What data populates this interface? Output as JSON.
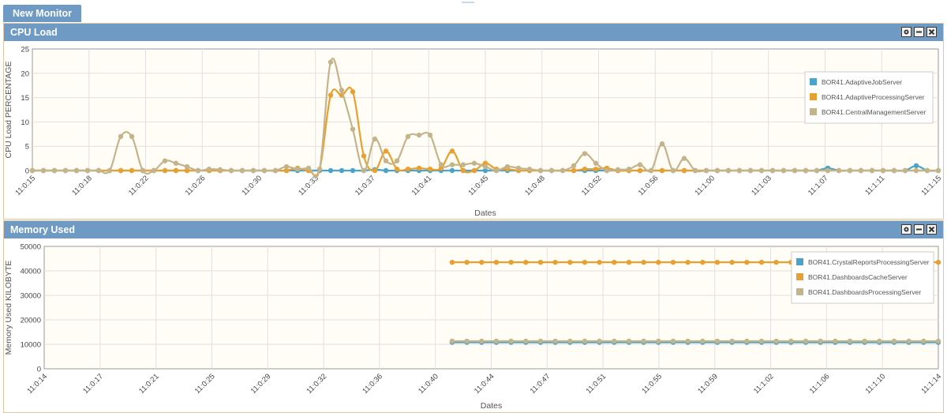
{
  "tab": {
    "label": "New Monitor"
  },
  "panels": [
    {
      "title": "CPU Load",
      "buttons": [
        "gear-icon",
        "minimize-icon",
        "close-icon"
      ]
    },
    {
      "title": "Memory Used",
      "buttons": [
        "gear-icon",
        "minimize-icon",
        "close-icon"
      ]
    }
  ],
  "colors": {
    "header": "#6e9ac4",
    "plot_bg": "#fffdf6",
    "grid": "#e0e0e0",
    "series_blue": "#4aa3c8",
    "series_orange": "#e8a030",
    "series_tan": "#c4b48c"
  },
  "chart_data": [
    {
      "type": "line",
      "title": "",
      "xlabel": "Dates",
      "ylabel": "CPU Load PERCENTAGE",
      "ylim": [
        0,
        25
      ],
      "yticks": [
        0,
        5,
        10,
        15,
        20,
        25
      ],
      "x_tick_labels": [
        "11:0:15",
        "11:0:18",
        "11:0:22",
        "11:0:26",
        "11:0:30",
        "11:0:33",
        "11:0:37",
        "11:0:41",
        "11:0:45",
        "11:0:48",
        "11:0:52",
        "11:0:56",
        "11:1:00",
        "11:1:03",
        "11:1:07",
        "11:1:11",
        "11:1:15"
      ],
      "grid": true,
      "legend": "top-right",
      "series": [
        {
          "name": "BOR41.AdaptiveJobServer",
          "color": "#4aa3c8",
          "values": [
            0,
            0,
            0,
            0,
            0,
            0,
            0,
            0,
            0,
            0,
            0,
            0,
            0,
            0,
            0,
            0,
            0,
            0,
            0,
            0,
            0,
            0,
            0,
            0,
            0,
            0,
            0,
            0,
            0,
            0,
            0,
            0.2,
            0,
            0,
            0,
            0,
            0,
            0,
            0,
            0,
            0,
            0,
            0,
            0,
            0,
            0,
            0,
            0,
            0,
            0,
            0,
            0,
            0,
            0,
            0,
            0,
            0,
            0,
            0,
            0,
            0,
            0,
            0,
            0,
            0,
            0,
            0,
            0,
            0,
            0,
            0,
            0,
            0.5,
            0,
            0,
            0,
            0,
            0,
            0,
            0,
            1,
            0,
            0
          ]
        },
        {
          "name": "BOR41.AdaptiveProcessingServer",
          "color": "#e8a030",
          "values": [
            0,
            0,
            0,
            0,
            0,
            0,
            0,
            0,
            0,
            0,
            0,
            0,
            0,
            0,
            0,
            0,
            0,
            0,
            0,
            0,
            0,
            0,
            0,
            0,
            0.5,
            0,
            0.3,
            15.5,
            15.5,
            16.2,
            3,
            0,
            4,
            0.3,
            0.3,
            0.5,
            0.3,
            0.5,
            4,
            0,
            0,
            1.5,
            0.3,
            0.3,
            0,
            0,
            0,
            0,
            0,
            0,
            0.3,
            0.3,
            0.5,
            0,
            0,
            0,
            0,
            0,
            0,
            0,
            0,
            0,
            0,
            0,
            0,
            0,
            0,
            0,
            0,
            0,
            0,
            0,
            0,
            0,
            0,
            0,
            0,
            0,
            0,
            0,
            0,
            0,
            0
          ]
        },
        {
          "name": "BOR41.CentralManagementServer",
          "color": "#c4b48c",
          "values": [
            0,
            0,
            0,
            0,
            0,
            0,
            0,
            0,
            7,
            7,
            0,
            0,
            2,
            1.5,
            0.8,
            0,
            0.3,
            0.2,
            0,
            0,
            0,
            0,
            0,
            0.8,
            0.3,
            0.5,
            0.3,
            22.3,
            16.5,
            8.5,
            0,
            6.5,
            2,
            2,
            7,
            7.3,
            7.3,
            1.2,
            1.2,
            1.2,
            1.5,
            0.8,
            0,
            0.8,
            0.5,
            0.3,
            0,
            0,
            0,
            1,
            3.5,
            1.5,
            0,
            0.2,
            0.3,
            1.2,
            0,
            5.5,
            0,
            2.5,
            0,
            0,
            0,
            0,
            0,
            0,
            0,
            0,
            0,
            0,
            0,
            0,
            0,
            0,
            0,
            0,
            0,
            0,
            0,
            0,
            0,
            0,
            0
          ]
        }
      ]
    },
    {
      "type": "line",
      "title": "",
      "xlabel": "Dates",
      "ylabel": "Memory Used KILOBYTE",
      "ylim": [
        0,
        50000
      ],
      "yticks": [
        0,
        10000,
        20000,
        30000,
        40000,
        50000
      ],
      "x_tick_labels": [
        "11:0:14",
        "11:0:17",
        "11:0:21",
        "11:0:25",
        "11:0:29",
        "11:0:32",
        "11:0:36",
        "11:0:40",
        "11:0:44",
        "11:0:47",
        "11:0:51",
        "11:0:55",
        "11:0:59",
        "11:1:02",
        "11:1:06",
        "11:1:10",
        "11:1:14"
      ],
      "grid": true,
      "legend": "top-right",
      "series_start_tick": 7.3,
      "series": [
        {
          "name": "BOR41.CrystalReportsProcessingServer",
          "color": "#4aa3c8",
          "constant": 10800
        },
        {
          "name": "BOR41.DashboardsCacheServer",
          "color": "#e8a030",
          "constant": 43500
        },
        {
          "name": "BOR41.DashboardsProcessingServer",
          "color": "#c4b48c",
          "constant": 11300
        }
      ]
    }
  ]
}
